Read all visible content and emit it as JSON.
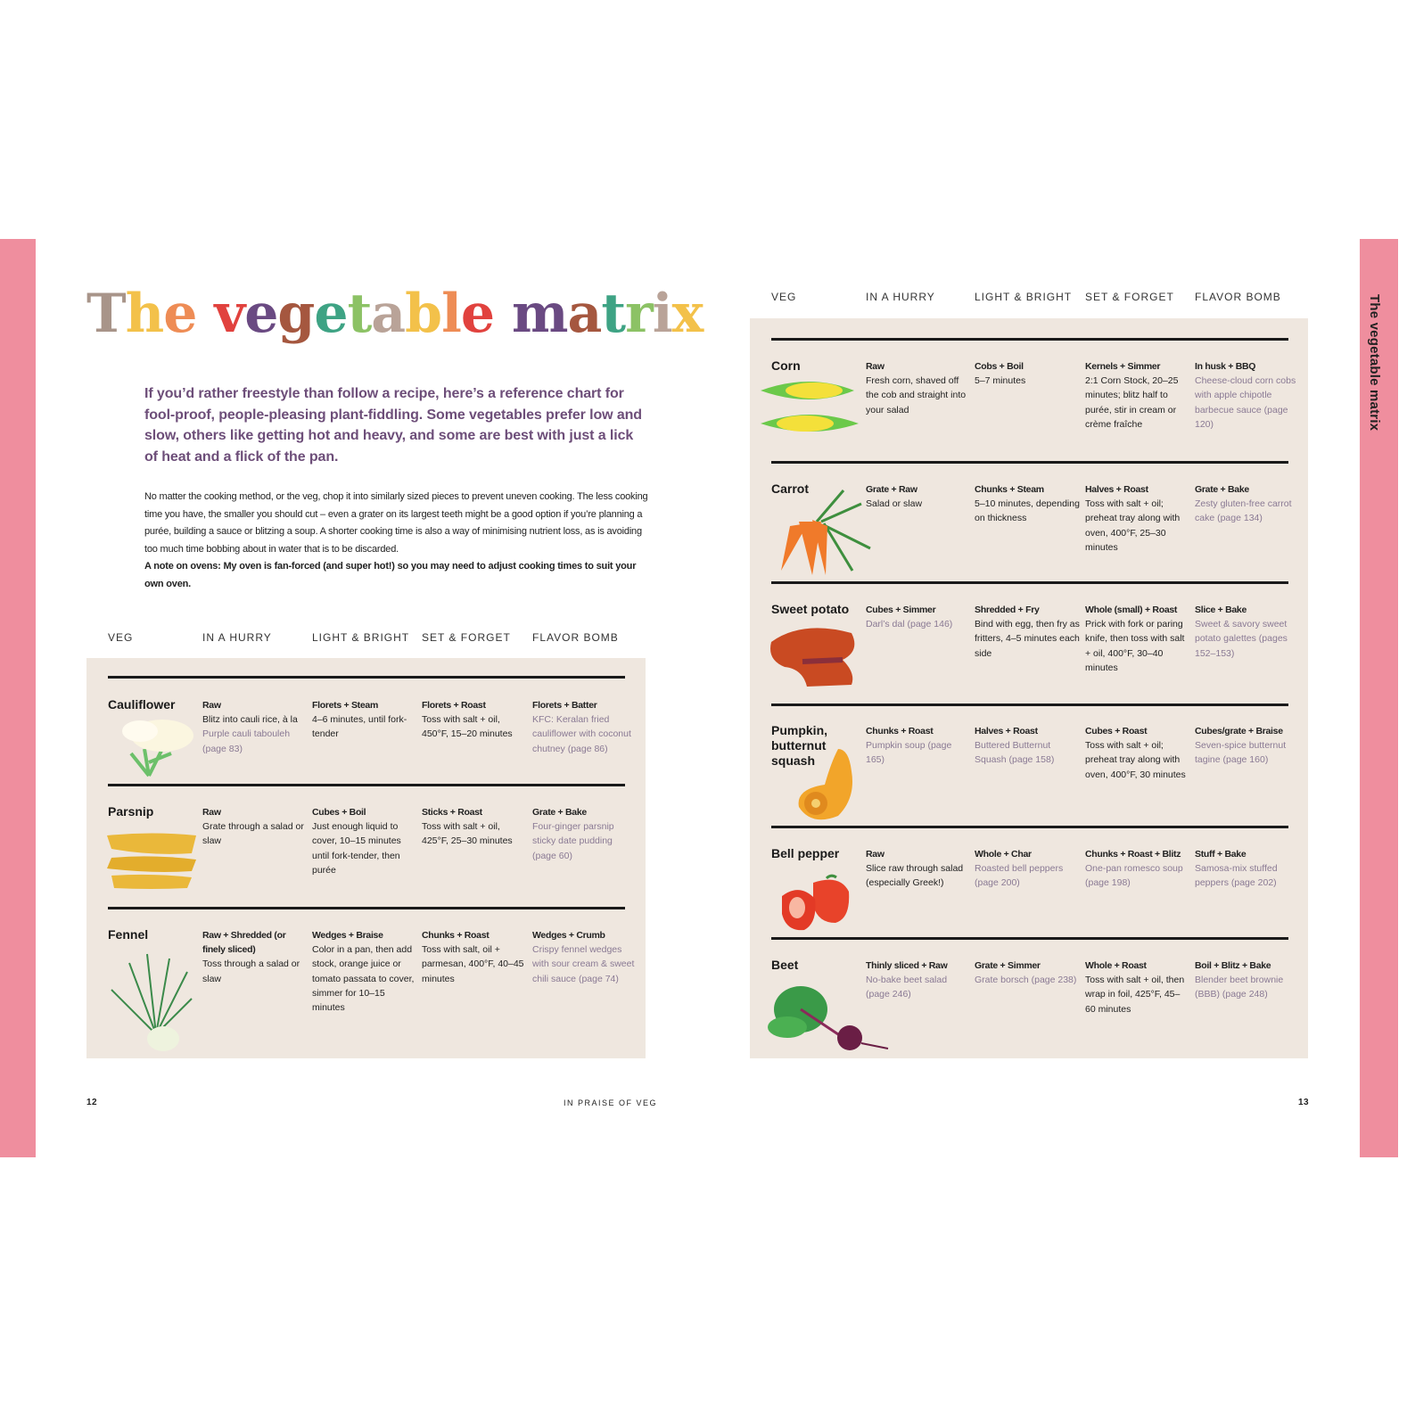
{
  "title": "The vegetable matrix",
  "title_colors": [
    "#a89489",
    "#f3c14a",
    "#ee8c55",
    "#ffffff",
    "#e1423e",
    "#6a4a82",
    "#a5573f",
    "#3ea384",
    "#8cc265",
    "#b9a398",
    "#f3c14a",
    "#ee8c55",
    "#e1423e",
    "#ffffff",
    "#6a4a82",
    "#a5573f",
    "#3ea384",
    "#8cc265",
    "#b9a398",
    "#f3c14a"
  ],
  "side_tab": "The vegetable matrix",
  "intro": "If you’d rather freestyle than follow a recipe, here’s a reference chart for fool-proof, people-pleasing plant-fiddling. Some vegetables prefer low and slow, others like getting hot and heavy, and some are best with just a lick of heat and a flick of the pan.",
  "body": "No matter the cooking method, or the veg, chop it into similarly sized pieces to prevent uneven cooking. The less cooking time you have, the smaller you should cut – even a grater on its largest teeth might be a good option if you’re planning a purée, building a sauce or blitzing a soup. A shorter cooking time is also a way of minimising nutrient loss, as is avoiding too much time bobbing about in water that is to be discarded.",
  "note": "A note on ovens: My oven is fan-forced (and super hot!) so you may need to adjust cooking times to suit your own oven.",
  "columns": [
    "VEG",
    "IN A HURRY",
    "LIGHT & BRIGHT",
    "SET & FORGET",
    "FLAVOR BOMB"
  ],
  "left_rows": [
    {
      "veg": "Cauliflower",
      "cells": [
        {
          "head": "Raw",
          "text": "Blitz into cauli rice, à la ",
          "link": "Purple cauli tabouleh (page 83)"
        },
        {
          "head": "Florets + Steam",
          "text": "4–6 minutes, until fork-tender",
          "link": ""
        },
        {
          "head": "Florets + Roast",
          "text": "Toss with salt + oil, 450°F, 15–20 minutes",
          "link": ""
        },
        {
          "head": "Florets + Batter",
          "text": "",
          "link": "KFC: Keralan fried cauliflower with coconut chutney (page 86)"
        }
      ]
    },
    {
      "veg": "Parsnip",
      "cells": [
        {
          "head": "Raw",
          "text": "Grate through a salad or slaw",
          "link": ""
        },
        {
          "head": "Cubes + Boil",
          "text": "Just enough liquid to cover, 10–15 minutes until fork-tender, then purée",
          "link": ""
        },
        {
          "head": "Sticks + Roast",
          "text": "Toss with salt + oil, 425°F, 25–30 minutes",
          "link": ""
        },
        {
          "head": "Grate + Bake",
          "text": "",
          "link": "Four-ginger parsnip sticky date pudding (page 60)"
        }
      ]
    },
    {
      "veg": "Fennel",
      "cells": [
        {
          "head": "Raw + Shredded (or finely sliced)",
          "text": "Toss through a salad or slaw",
          "link": ""
        },
        {
          "head": "Wedges + Braise",
          "text": "Color in a pan, then add stock, orange juice or tomato passata to cover, simmer for 10–15 minutes",
          "link": ""
        },
        {
          "head": "Chunks + Roast",
          "text": "Toss with salt, oil + parmesan, 400°F, 40–45 minutes",
          "link": ""
        },
        {
          "head": "Wedges + Crumb",
          "text": "",
          "link": "Crispy fennel wedges with sour cream & sweet chili sauce (page 74)"
        }
      ]
    }
  ],
  "right_rows": [
    {
      "veg": "Corn",
      "cells": [
        {
          "head": "Raw",
          "text": "Fresh corn, shaved off the cob and straight into your salad",
          "link": ""
        },
        {
          "head": "Cobs + Boil",
          "text": "5–7 minutes",
          "link": ""
        },
        {
          "head": "Kernels + Simmer",
          "text": "2:1 Corn Stock, 20–25 minutes; blitz half to purée, stir in cream or crème fraîche",
          "link": ""
        },
        {
          "head": "In husk + BBQ",
          "text": "",
          "link": "Cheese-cloud corn cobs with apple chipotle barbecue sauce (page 120)"
        }
      ]
    },
    {
      "veg": "Carrot",
      "cells": [
        {
          "head": "Grate + Raw",
          "text": "Salad or slaw",
          "link": ""
        },
        {
          "head": "Chunks + Steam",
          "text": "5–10 minutes, depending on thickness",
          "link": ""
        },
        {
          "head": "Halves + Roast",
          "text": "Toss with salt + oil; preheat tray along with oven, 400°F, 25–30 minutes",
          "link": ""
        },
        {
          "head": "Grate + Bake",
          "text": "",
          "link": "Zesty gluten-free carrot cake (page 134)"
        }
      ]
    },
    {
      "veg": "Sweet potato",
      "cells": [
        {
          "head": "Cubes + Simmer",
          "text": "",
          "link": "Darl’s dal (page 146)"
        },
        {
          "head": "Shredded + Fry",
          "text": "Bind with egg, then fry as fritters, 4–5 minutes each side",
          "link": ""
        },
        {
          "head": "Whole (small) + Roast",
          "text": "Prick with fork or paring knife, then toss with salt + oil, 400°F, 30–40 minutes",
          "link": ""
        },
        {
          "head": "Slice + Bake",
          "text": "",
          "link": "Sweet & savory sweet potato galettes (pages 152–153)"
        }
      ]
    },
    {
      "veg": "Pumpkin, butternut squash",
      "cells": [
        {
          "head": "Chunks + Roast",
          "text": "",
          "link": "Pumpkin soup (page 165)"
        },
        {
          "head": "Halves + Roast",
          "text": "",
          "link": "Buttered Butternut Squash (page 158)"
        },
        {
          "head": "Cubes + Roast",
          "text": "Toss with salt + oil; preheat tray along with oven, 400°F, 30 minutes",
          "link": ""
        },
        {
          "head": "Cubes/grate + Braise",
          "text": "",
          "link": "Seven-spice butternut tagine (page 160)"
        }
      ]
    },
    {
      "veg": "Bell pepper",
      "cells": [
        {
          "head": "Raw",
          "text": "Slice raw through salad (especially Greek!)",
          "link": ""
        },
        {
          "head": "Whole + Char",
          "text": "",
          "link": "Roasted bell peppers (page 200)"
        },
        {
          "head": "Chunks + Roast + Blitz",
          "text": "",
          "link": "One-pan romesco soup (page 198)"
        },
        {
          "head": "Stuff + Bake",
          "text": "",
          "link": "Samosa-mix stuffed peppers (page 202)"
        }
      ]
    },
    {
      "veg": "Beet",
      "cells": [
        {
          "head": "Thinly sliced + Raw",
          "text": "",
          "link": "No-bake beet salad (page 246)"
        },
        {
          "head": "Grate + Simmer",
          "text": "",
          "link": "Grate borsch (page 238)"
        },
        {
          "head": "Whole + Roast",
          "text": "Toss with salt + oil, then wrap in foil, 425°F, 45–60 minutes",
          "link": ""
        },
        {
          "head": "Boil + Blitz + Bake",
          "text": "",
          "link": "Blender beet brownie (BBB) (page 248)"
        }
      ]
    }
  ],
  "footer": {
    "left_page": "12",
    "running_head": "IN PRAISE OF VEG",
    "right_page": "13"
  },
  "colors": {
    "pink": "#ef8e9e",
    "panel": "#efe7df",
    "intro": "#6d4e79",
    "recipe_link": "#8a7a94"
  }
}
